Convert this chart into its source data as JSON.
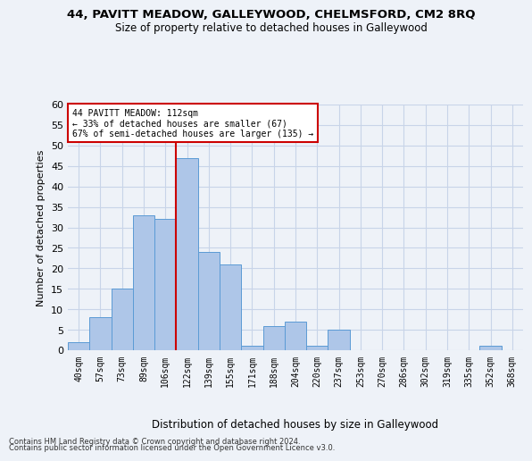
{
  "title_line1": "44, PAVITT MEADOW, GALLEYWOOD, CHELMSFORD, CM2 8RQ",
  "title_line2": "Size of property relative to detached houses in Galleywood",
  "xlabel": "Distribution of detached houses by size in Galleywood",
  "ylabel": "Number of detached properties",
  "bar_labels": [
    "40sqm",
    "57sqm",
    "73sqm",
    "89sqm",
    "106sqm",
    "122sqm",
    "139sqm",
    "155sqm",
    "171sqm",
    "188sqm",
    "204sqm",
    "220sqm",
    "237sqm",
    "253sqm",
    "270sqm",
    "286sqm",
    "302sqm",
    "319sqm",
    "335sqm",
    "352sqm",
    "368sqm"
  ],
  "bar_values": [
    2,
    8,
    15,
    33,
    32,
    47,
    24,
    21,
    1,
    6,
    7,
    1,
    5,
    0,
    0,
    0,
    0,
    0,
    0,
    1,
    0
  ],
  "bar_color": "#aec6e8",
  "bar_edge_color": "#5b9bd5",
  "vline_x_index": 5,
  "vline_color": "#cc0000",
  "ylim": [
    0,
    60
  ],
  "yticks": [
    0,
    5,
    10,
    15,
    20,
    25,
    30,
    35,
    40,
    45,
    50,
    55,
    60
  ],
  "annotation_text": "44 PAVITT MEADOW: 112sqm\n← 33% of detached houses are smaller (67)\n67% of semi-detached houses are larger (135) →",
  "annotation_box_color": "#ffffff",
  "annotation_box_edge": "#cc0000",
  "footer_line1": "Contains HM Land Registry data © Crown copyright and database right 2024.",
  "footer_line2": "Contains public sector information licensed under the Open Government Licence v3.0.",
  "bg_color": "#eef2f8",
  "grid_color": "#c8d4e8"
}
